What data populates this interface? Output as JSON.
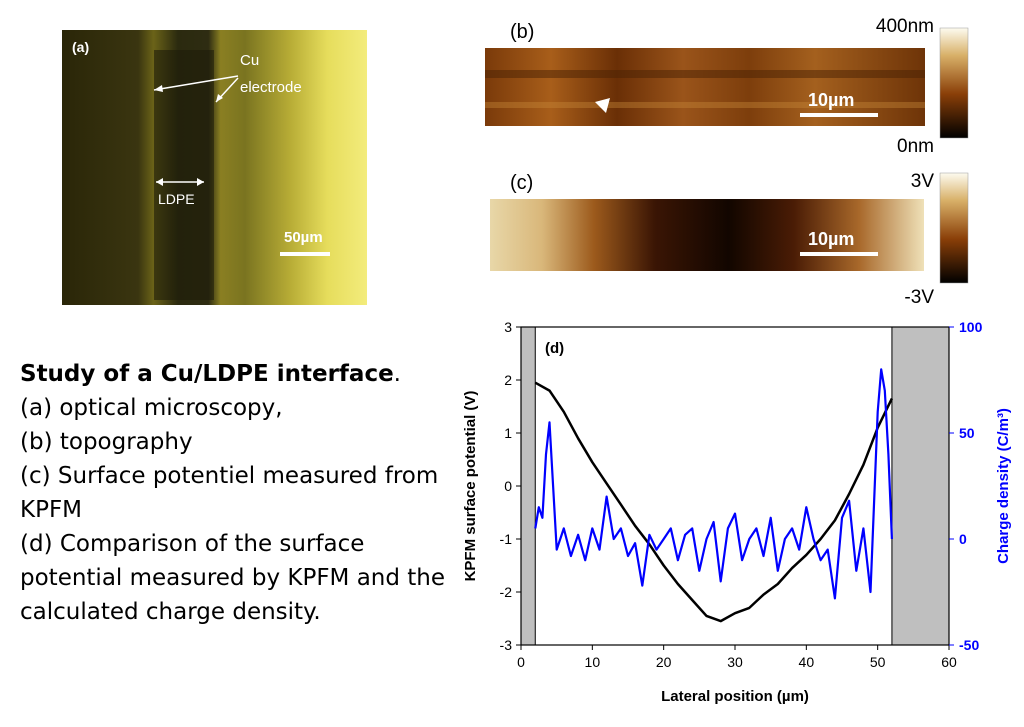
{
  "panel_a": {
    "label": "(a)",
    "annotation_line1": "Cu",
    "annotation_line2": "electrode",
    "ldpe_label": "LDPE",
    "scale_bar": "50µm"
  },
  "panel_b": {
    "label": "(b)",
    "scale_bar": "10µm",
    "colorbar_max": "400nm",
    "colorbar_min": "0nm"
  },
  "panel_c": {
    "label": "(c)",
    "scale_bar": "10µm",
    "colorbar_max": "3V",
    "colorbar_min": "-3V"
  },
  "caption": {
    "title": "Study of a Cu/LDPE interface",
    "title_suffix": ".",
    "lines": [
      "(a) optical microscopy,",
      "(b) topography",
      "(c) Surface potentiel measured from KPFM",
      "(d) Comparison of the surface potential measured by KPFM and the calculated charge density."
    ]
  },
  "colors": {
    "potential_curve": "#000000",
    "charge_curve": "#0000ff",
    "electrode_shade": "#bfbfbf"
  },
  "chart_data": {
    "type": "line",
    "panel_label": "(d)",
    "xlabel": "Lateral position (µm)",
    "ylabel_left": "KPFM surface potential (V)",
    "ylabel_right": "Charge density (C/m³)",
    "xlim": [
      0,
      60
    ],
    "ylim_left": [
      -3,
      3
    ],
    "ylim_right": [
      -50,
      100
    ],
    "x_ticks": [
      "0",
      "10",
      "20",
      "30",
      "40",
      "50",
      "60"
    ],
    "y_ticks_left": [
      "3",
      "2",
      "1",
      "0",
      "-1",
      "-2",
      "-3"
    ],
    "y_ticks_right": [
      "100",
      "50",
      "0",
      "-50"
    ],
    "shaded_regions": [
      [
        0,
        2
      ],
      [
        52,
        60
      ]
    ],
    "series": [
      {
        "axis": "left",
        "x": [
          2,
          4,
          6,
          8,
          10,
          12,
          14,
          16,
          18,
          20,
          22,
          24,
          26,
          28,
          30,
          32,
          34,
          36,
          38,
          40,
          42,
          44,
          46,
          48,
          50,
          52
        ],
        "values": [
          1.95,
          1.8,
          1.4,
          0.9,
          0.45,
          0.05,
          -0.35,
          -0.75,
          -1.1,
          -1.5,
          -1.85,
          -2.15,
          -2.45,
          -2.55,
          -2.4,
          -2.3,
          -2.05,
          -1.85,
          -1.55,
          -1.3,
          -1.0,
          -0.65,
          -0.15,
          0.4,
          1.1,
          1.65
        ]
      },
      {
        "axis": "right",
        "x": [
          2,
          2.5,
          3,
          3.5,
          4,
          4.5,
          5,
          6,
          7,
          8,
          9,
          10,
          11,
          12,
          13,
          14,
          15,
          16,
          17,
          18,
          19,
          20,
          21,
          22,
          23,
          24,
          25,
          26,
          27,
          28,
          29,
          30,
          31,
          32,
          33,
          34,
          35,
          36,
          37,
          38,
          39,
          40,
          41,
          42,
          43,
          44,
          45,
          46,
          47,
          48,
          49,
          50,
          50.5,
          51,
          51.5,
          52
        ],
        "values": [
          5,
          15,
          10,
          40,
          55,
          25,
          -5,
          5,
          -8,
          2,
          -10,
          5,
          -5,
          20,
          0,
          5,
          -8,
          -2,
          -22,
          2,
          -5,
          0,
          5,
          -10,
          2,
          5,
          -15,
          0,
          8,
          -20,
          5,
          12,
          -10,
          0,
          5,
          -8,
          10,
          -15,
          0,
          5,
          -5,
          15,
          0,
          -10,
          -5,
          -28,
          10,
          18,
          -15,
          5,
          -25,
          60,
          80,
          70,
          40,
          0
        ]
      }
    ]
  }
}
